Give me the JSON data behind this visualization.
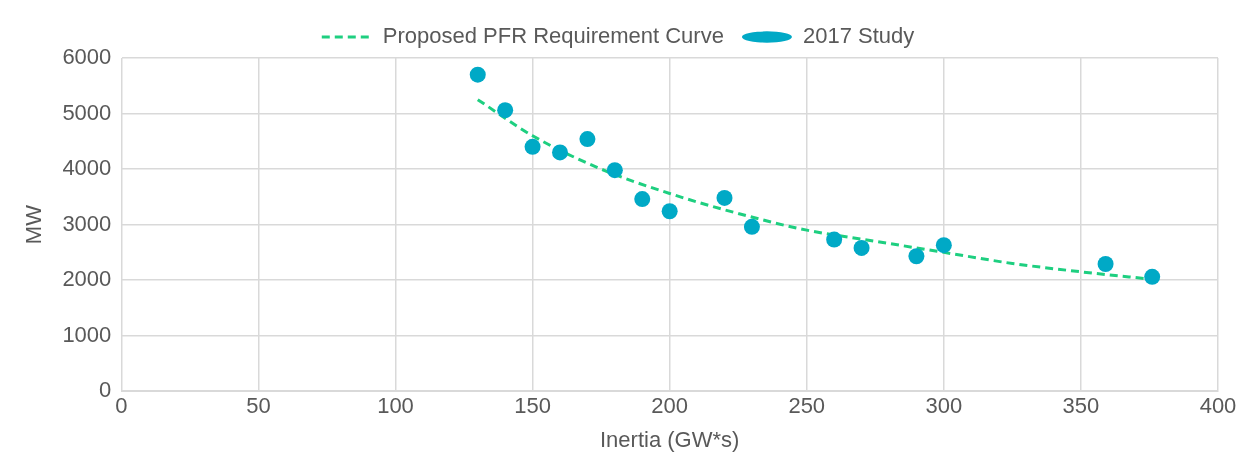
{
  "chart_data": {
    "type": "scatter",
    "xlabel": "Inertia (GW*s)",
    "ylabel": "MW",
    "xlim": [
      0,
      400
    ],
    "xticks": [
      0,
      50,
      100,
      150,
      200,
      250,
      300,
      350,
      400
    ],
    "ylim": [
      0,
      6000
    ],
    "yticks": [
      0,
      1000,
      2000,
      3000,
      4000,
      5000,
      6000
    ],
    "grid": true,
    "legend": "top",
    "series": [
      {
        "name": "Proposed PFR Requirement Curve",
        "type": "line",
        "line_style": "dashed",
        "marker": "none",
        "color": "#1ecf80",
        "x": [
          130,
          150,
          175,
          200,
          225,
          250,
          275,
          300,
          325,
          350,
          375
        ],
        "values": [
          5250,
          4600,
          4000,
          3560,
          3200,
          2900,
          2700,
          2500,
          2300,
          2150,
          2020
        ]
      },
      {
        "name": "2017 Study",
        "type": "scatter",
        "marker": "circle",
        "color": "#00a9c6",
        "x": [
          130,
          140,
          150,
          160,
          170,
          180,
          190,
          200,
          220,
          230,
          260,
          270,
          290,
          300,
          359,
          376
        ],
        "values": [
          5700,
          5060,
          4400,
          4300,
          4540,
          3980,
          3460,
          3240,
          3480,
          2960,
          2730,
          2580,
          2430,
          2630,
          2290,
          2060
        ]
      }
    ]
  }
}
